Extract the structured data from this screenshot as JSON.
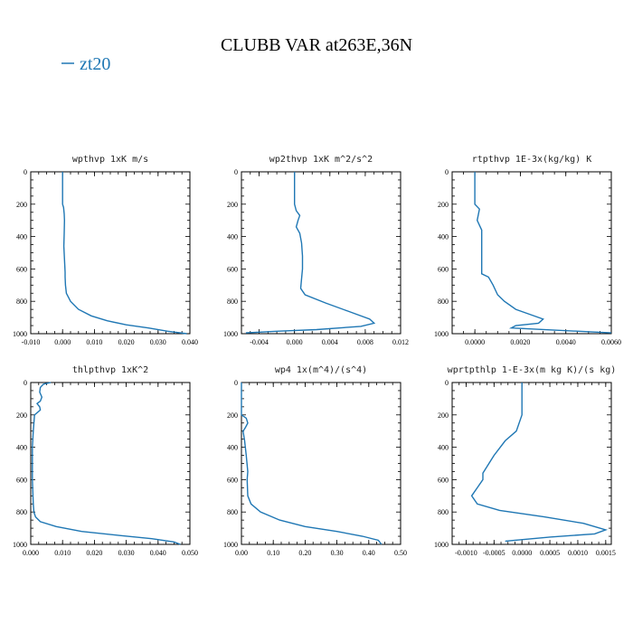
{
  "page": {
    "title": "CLUBB VAR at263E,36N",
    "legend_label": "zt20",
    "accent_color": "#1f77b4"
  },
  "chart_data": [
    {
      "type": "line",
      "title": "wpthvp   1xK  m/s",
      "xlim": [
        -0.01,
        0.04
      ],
      "ylim": [
        1000,
        0
      ],
      "xticks": [
        "-0.010",
        "0.000",
        "0.010",
        "0.020",
        "0.030",
        "0.040"
      ],
      "xtick_values": [
        -0.01,
        0,
        0.01,
        0.02,
        0.03,
        0.04
      ],
      "yticks": [
        "0",
        "200",
        "400",
        "600",
        "800",
        "1000"
      ],
      "ytick_values": [
        0,
        200,
        400,
        600,
        800,
        1000
      ],
      "series": [
        {
          "name": "zt20",
          "x": [
            0.0,
            0.0,
            0.0003,
            0.0005,
            0.0006,
            0.0005,
            0.0004,
            0.0006,
            0.0008,
            0.0008,
            0.0009,
            0.0012,
            0.0025,
            0.005,
            0.009,
            0.014,
            0.02,
            0.027,
            0.033,
            0.039
          ],
          "y": [
            0,
            200,
            220,
            260,
            300,
            380,
            460,
            540,
            620,
            650,
            700,
            750,
            800,
            850,
            890,
            920,
            945,
            965,
            985,
            1000
          ]
        }
      ]
    },
    {
      "type": "line",
      "title": "wp2thvp   1xK  m^2/s^2",
      "xlim": [
        -0.006,
        0.012
      ],
      "ylim": [
        1000,
        0
      ],
      "xticks": [
        "-0.004",
        "0.000",
        "0.004",
        "0.008",
        "0.012"
      ],
      "xtick_values": [
        -0.004,
        0,
        0.004,
        0.008,
        0.012
      ],
      "yticks": [
        "0",
        "200",
        "400",
        "600",
        "800",
        "1000"
      ],
      "ytick_values": [
        0,
        200,
        400,
        600,
        800,
        1000
      ],
      "series": [
        {
          "name": "zt20",
          "x": [
            0.0,
            0.0,
            0.0002,
            0.0006,
            0.0004,
            0.0002,
            0.0006,
            0.0008,
            0.0009,
            0.0009,
            0.0008,
            0.0007,
            0.0012,
            0.0035,
            0.006,
            0.0085,
            0.009,
            0.0075,
            0.0025,
            -0.002,
            -0.0055
          ],
          "y": [
            0,
            200,
            240,
            270,
            300,
            340,
            380,
            440,
            520,
            600,
            660,
            720,
            760,
            810,
            860,
            910,
            935,
            955,
            975,
            985,
            995
          ]
        }
      ]
    },
    {
      "type": "line",
      "title": "rtpthvp   1E-3x(kg/kg) K",
      "xlim": [
        -0.001,
        0.006
      ],
      "ylim": [
        1000,
        0
      ],
      "xticks": [
        "0.0000",
        "0.0020",
        "0.0040",
        "0.0060"
      ],
      "xtick_values": [
        0,
        0.002,
        0.004,
        0.006
      ],
      "yticks": [
        "0",
        "200",
        "400",
        "600",
        "800",
        "1000"
      ],
      "ytick_values": [
        0,
        200,
        400,
        600,
        800,
        1000
      ],
      "series": [
        {
          "name": "zt20",
          "x": [
            0.0,
            0.0,
            0.0002,
            0.0001,
            0.0003,
            0.0003,
            0.0003,
            0.0006,
            0.0008,
            0.001,
            0.0013,
            0.0018,
            0.0024,
            0.003,
            0.0028,
            0.0018,
            0.0016,
            0.006
          ],
          "y": [
            0,
            200,
            230,
            300,
            360,
            450,
            630,
            650,
            700,
            760,
            800,
            850,
            880,
            910,
            935,
            950,
            965,
            995
          ]
        }
      ]
    },
    {
      "type": "line",
      "title": "thlpthvp   1xK^2",
      "xlim": [
        0,
        0.05
      ],
      "ylim": [
        1000,
        0
      ],
      "xticks": [
        "0.000",
        "0.010",
        "0.020",
        "0.030",
        "0.040",
        "0.050"
      ],
      "xtick_values": [
        0,
        0.01,
        0.02,
        0.03,
        0.04,
        0.05
      ],
      "yticks": [
        "0",
        "200",
        "400",
        "600",
        "800",
        "1000"
      ],
      "ytick_values": [
        0,
        200,
        400,
        600,
        800,
        1000
      ],
      "series": [
        {
          "name": "zt20",
          "x": [
            0.0063,
            0.004,
            0.003,
            0.0028,
            0.0035,
            0.003,
            0.002,
            0.0028,
            0.003,
            0.0012,
            0.0008,
            0.0005,
            0.0005,
            0.0008,
            0.001,
            0.0015,
            0.003,
            0.008,
            0.016,
            0.028,
            0.038,
            0.045,
            0.047
          ],
          "y": [
            0,
            10,
            30,
            60,
            90,
            115,
            130,
            150,
            170,
            200,
            300,
            400,
            600,
            750,
            800,
            830,
            860,
            890,
            920,
            945,
            965,
            985,
            1000
          ]
        }
      ]
    },
    {
      "type": "line",
      "title": "wp4   1x(m^4)/(s^4)",
      "xlim": [
        0,
        0.5
      ],
      "ylim": [
        1000,
        0
      ],
      "xticks": [
        "0.00",
        "0.10",
        "0.20",
        "0.30",
        "0.40",
        "0.50"
      ],
      "xtick_values": [
        0,
        0.1,
        0.2,
        0.3,
        0.4,
        0.5
      ],
      "yticks": [
        "0",
        "200",
        "400",
        "600",
        "800",
        "1000"
      ],
      "ytick_values": [
        0,
        200,
        400,
        600,
        800,
        1000
      ],
      "series": [
        {
          "name": "zt20",
          "x": [
            0.0,
            0.0,
            0.015,
            0.02,
            0.012,
            0.005,
            0.01,
            0.015,
            0.02,
            0.018,
            0.02,
            0.03,
            0.06,
            0.12,
            0.2,
            0.3,
            0.38,
            0.43,
            0.44
          ],
          "y": [
            0,
            200,
            220,
            250,
            280,
            300,
            360,
            450,
            550,
            600,
            700,
            750,
            800,
            850,
            890,
            920,
            950,
            975,
            1000
          ]
        }
      ]
    },
    {
      "type": "line",
      "title": "wprtpthlp   1-E-3x(m kg K)/(s kg)",
      "xlim": [
        -0.00125,
        0.0016
      ],
      "ylim": [
        1000,
        0
      ],
      "xticks": [
        "-0.0010",
        "-0.0005",
        "0.0000",
        "0.0005",
        "0.0010",
        "0.0015"
      ],
      "xtick_values": [
        -0.001,
        -0.0005,
        0,
        0.0005,
        0.001,
        0.0015
      ],
      "yticks": [
        "0",
        "200",
        "400",
        "600",
        "800",
        "1000"
      ],
      "ytick_values": [
        0,
        200,
        400,
        600,
        800,
        1000
      ],
      "series": [
        {
          "name": "zt20",
          "x": [
            0.0,
            0.0,
            -0.0001,
            -0.0003,
            -0.0005,
            -0.0007,
            -0.0007,
            -0.0008,
            -0.0009,
            -0.0008,
            -0.0004,
            0.0004,
            0.0011,
            0.0015,
            0.0013,
            0.0005,
            -0.0003
          ],
          "y": [
            0,
            200,
            300,
            360,
            450,
            560,
            600,
            650,
            700,
            750,
            790,
            830,
            870,
            910,
            935,
            955,
            980
          ]
        }
      ]
    }
  ]
}
